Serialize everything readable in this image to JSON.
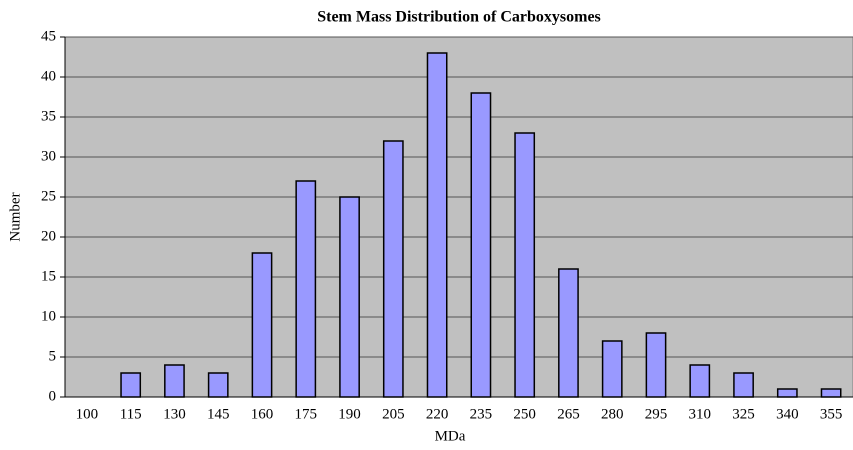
{
  "chart_data": {
    "type": "bar",
    "title": "Stem Mass Distribution of Carboxysomes",
    "x_label": "MDa",
    "y_label": "Number",
    "categories": [
      "100",
      "115",
      "130",
      "145",
      "160",
      "175",
      "190",
      "205",
      "220",
      "235",
      "250",
      "265",
      "280",
      "295",
      "310",
      "325",
      "340",
      "355"
    ],
    "values": [
      0,
      3,
      4,
      3,
      18,
      27,
      25,
      32,
      43,
      38,
      33,
      16,
      7,
      8,
      4,
      3,
      1,
      1
    ],
    "color": "#9999ff",
    "background": "#c0c0c0",
    "ylim": [
      0,
      45
    ],
    "yticks": [
      0,
      5,
      10,
      15,
      20,
      25,
      30,
      35,
      40,
      45
    ],
    "grid": true
  }
}
